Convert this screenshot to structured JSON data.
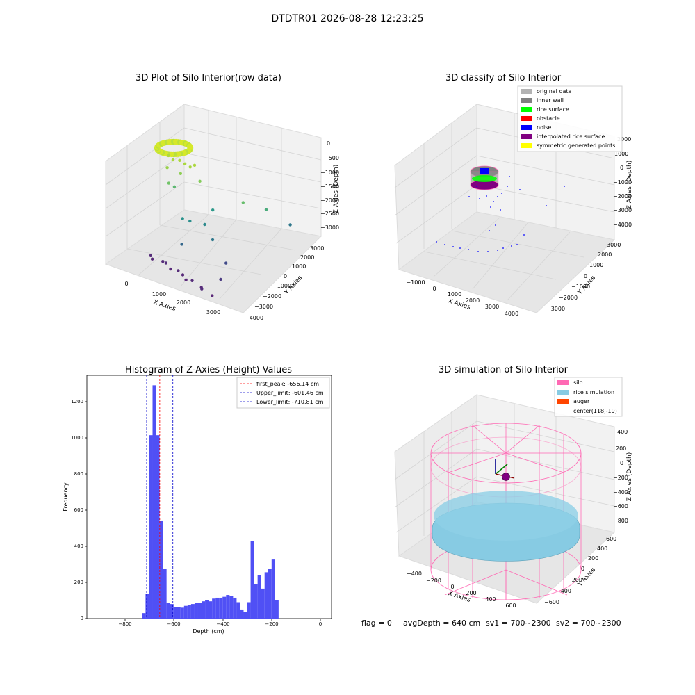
{
  "suptitle": "DTDTR01 2026-08-28 12:23:25",
  "footer": {
    "flag": "flag = 0",
    "avg_depth": "avgDepth = 640 cm",
    "sv1": "sv1 = 700~2300",
    "sv2": "sv2 = 700~2300"
  },
  "colors": {
    "histogram_bar": "#5050f5",
    "first_peak": "#ff0000",
    "limit_lines": "#0000cc",
    "silo": "#ff69b4",
    "rice_simulation": "#87cbe3",
    "auger": "#ff4500",
    "original_data": "#b3b3b3",
    "inner_wall": "#808080",
    "rice_surface": "#00ff00",
    "obstacle": "#ff0000",
    "noise": "#0000ff",
    "interpolated_rice_surface": "#800080",
    "symmetric_generated_points": "#ffff00"
  },
  "chart_data": [
    {
      "type": "scatter",
      "projection": "3d",
      "title": "3D Plot of Silo Interior(row data)",
      "xlabel": "X Axies",
      "ylabel": "Y Axies",
      "zlabel": "Z Axies (Depth)",
      "x_ticks": [
        "0",
        "1000",
        "2000",
        "3000"
      ],
      "y_ticks": [
        "−4000",
        "−3000",
        "−2000",
        "−1000",
        "0",
        "1000",
        "2000",
        "3000"
      ],
      "z_ticks": [
        "0",
        "−500",
        "−1000",
        "−1500",
        "−2000",
        "−2500",
        "−3000"
      ],
      "colormap": "viridis (by depth)",
      "points": [
        {
          "x": 100,
          "y": 400,
          "z": -250
        },
        {
          "x": 300,
          "y": 300,
          "z": -300
        },
        {
          "x": 500,
          "y": 350,
          "z": -280
        },
        {
          "x": 700,
          "y": 300,
          "z": -320
        },
        {
          "x": 900,
          "y": 250,
          "z": -350
        },
        {
          "x": 1000,
          "y": 350,
          "z": -300
        },
        {
          "x": 200,
          "y": 100,
          "z": -500
        },
        {
          "x": 600,
          "y": 200,
          "z": -600
        },
        {
          "x": 1200,
          "y": 300,
          "z": -700
        },
        {
          "x": 300,
          "y": 0,
          "z": -900
        },
        {
          "x": 2600,
          "y": 400,
          "z": -1000
        },
        {
          "x": 300,
          "y": 400,
          "z": -1100
        },
        {
          "x": 1400,
          "y": 800,
          "z": -1600
        },
        {
          "x": 3000,
          "y": 1200,
          "z": -1300
        },
        {
          "x": 3200,
          "y": 2500,
          "z": -2000
        },
        {
          "x": 1500,
          "y": 0,
          "z": -1800
        },
        {
          "x": 900,
          "y": -300,
          "z": -1700
        },
        {
          "x": 1100,
          "y": -200,
          "z": -1750
        },
        {
          "x": 1200,
          "y": -1000,
          "z": -2200
        },
        {
          "x": 2000,
          "y": -500,
          "z": -2000
        },
        {
          "x": 2400,
          "y": -400,
          "z": -2600
        },
        {
          "x": 2500,
          "y": -1000,
          "z": -2900
        },
        {
          "x": -400,
          "y": 200,
          "z": -3200
        },
        {
          "x": -300,
          "y": 100,
          "z": -3250
        },
        {
          "x": 100,
          "y": 0,
          "z": -3200
        },
        {
          "x": 300,
          "y": -200,
          "z": -3150
        },
        {
          "x": 500,
          "y": -300,
          "z": -3250
        },
        {
          "x": 800,
          "y": -400,
          "z": -3200
        },
        {
          "x": 1000,
          "y": -500,
          "z": -3250
        },
        {
          "x": 1200,
          "y": -700,
          "z": -3300
        },
        {
          "x": 1500,
          "y": -900,
          "z": -3200
        },
        {
          "x": 1900,
          "y": -1100,
          "z": -3250
        },
        {
          "x": 2100,
          "y": -1500,
          "z": -3150
        },
        {
          "x": 2400,
          "y": -1400,
          "z": -3300
        }
      ]
    },
    {
      "type": "scatter",
      "projection": "3d",
      "title": "3D classify of Silo Interior",
      "xlabel": "X Axies",
      "ylabel": "Y Axies",
      "zlabel": "Z Axies (Depth)",
      "x_ticks": [
        "−1000",
        "0",
        "1000",
        "2000",
        "3000",
        "4000"
      ],
      "y_ticks": [
        "−3000",
        "−2000",
        "−1000",
        "0",
        "1000",
        "2000",
        "3000"
      ],
      "z_ticks": [
        "2000",
        "1000",
        "0",
        "−1000",
        "−2000",
        "−3000",
        "−4000"
      ],
      "legend": [
        "original data",
        "inner wall",
        "rice surface",
        "obstacle",
        "noise",
        "interpolated rice surface",
        "symmetric generated points"
      ],
      "legend_position": "upper right"
    },
    {
      "type": "bar",
      "title": "Histogram of Z-Axies (Height) Values",
      "xlabel": "Depth (cm)",
      "ylabel": "Frequency",
      "xlim": [
        -960,
        60
      ],
      "ylim": [
        0,
        1340
      ],
      "x_ticks": [
        "−800",
        "−600",
        "−400",
        "−200",
        "0"
      ],
      "y_ticks": [
        "0",
        "200",
        "400",
        "600",
        "800",
        "1000",
        "1200"
      ],
      "bin_width": 14.6,
      "bin_start": -730,
      "values": [
        30,
        135,
        1010,
        1285,
        1010,
        540,
        275,
        85,
        80,
        65,
        65,
        60,
        70,
        75,
        80,
        85,
        85,
        95,
        100,
        95,
        110,
        115,
        115,
        120,
        130,
        125,
        115,
        90,
        50,
        35,
        90,
        425,
        190,
        240,
        165,
        255,
        275,
        325,
        100
      ],
      "vlines": [
        {
          "label": "first_peak: -656.14 cm",
          "x": -656.14,
          "style": "dashed",
          "color": "#ff0000"
        },
        {
          "label": "Upper_limit: -601.46 cm",
          "x": -601.46,
          "style": "dashed",
          "color": "#0000cc"
        },
        {
          "label": "Lower_limit: -710.81 cm",
          "x": -710.81,
          "style": "dashed",
          "color": "#0000cc"
        }
      ],
      "legend_position": "upper right"
    },
    {
      "type": "surface",
      "projection": "3d",
      "title": "3D simulation of Silo Interior",
      "xlabel": "X Axies",
      "ylabel": "Y Axies",
      "zlabel": "Z Axies (Depth)",
      "x_ticks": [
        "−400",
        "−200",
        "0",
        "200",
        "400",
        "600"
      ],
      "y_ticks": [
        "−600",
        "−400",
        "−200",
        "0",
        "200",
        "400",
        "600"
      ],
      "z_ticks": [
        "400",
        "200",
        "0",
        "−200",
        "−400",
        "−600",
        "−800"
      ],
      "legend": [
        "silo",
        "rice simulation",
        "auger",
        "center(118,-19)"
      ],
      "legend_position": "upper right",
      "center": [
        118,
        -19
      ]
    }
  ]
}
